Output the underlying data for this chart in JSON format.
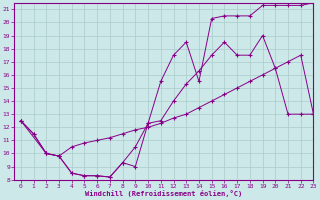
{
  "xlabel": "Windchill (Refroidissement éolien,°C)",
  "bg_color": "#cce8e8",
  "grid_color": "#aacccc",
  "line_color": "#880088",
  "xlim": [
    -0.5,
    23
  ],
  "ylim": [
    8,
    21.5
  ],
  "xticks": [
    0,
    1,
    2,
    3,
    4,
    5,
    6,
    7,
    8,
    9,
    10,
    11,
    12,
    13,
    14,
    15,
    16,
    17,
    18,
    19,
    20,
    21,
    22,
    23
  ],
  "yticks": [
    8,
    9,
    10,
    11,
    12,
    13,
    14,
    15,
    16,
    17,
    18,
    19,
    20,
    21
  ],
  "line1_x": [
    0,
    1,
    2,
    3,
    4,
    5,
    6,
    7,
    8,
    9,
    10,
    11,
    12,
    13,
    14,
    15,
    16,
    17,
    18,
    19,
    20,
    21,
    22,
    23
  ],
  "line1_y": [
    12.5,
    11.5,
    10.0,
    9.8,
    8.5,
    8.3,
    8.3,
    8.2,
    9.3,
    10.5,
    12.3,
    12.5,
    14.0,
    15.3,
    16.3,
    17.5,
    18.5,
    17.5,
    17.5,
    19.0,
    16.5,
    13.0,
    13.0,
    13.0
  ],
  "line2_x": [
    0,
    2,
    3,
    4,
    5,
    6,
    7,
    8,
    9,
    10,
    11,
    12,
    13,
    14,
    15,
    16,
    17,
    18,
    19,
    20,
    21,
    22,
    23
  ],
  "line2_y": [
    12.5,
    10.0,
    9.8,
    10.5,
    10.8,
    11.0,
    11.2,
    11.5,
    11.8,
    12.0,
    12.3,
    12.7,
    13.0,
    13.5,
    14.0,
    14.5,
    15.0,
    15.5,
    16.0,
    16.5,
    17.0,
    17.5,
    13.0
  ],
  "line3_x": [
    0,
    1,
    2,
    3,
    4,
    5,
    6,
    7,
    8,
    9,
    10,
    11,
    12,
    13,
    14,
    15,
    16,
    17,
    18,
    19,
    20,
    21,
    22,
    23
  ],
  "line3_y": [
    12.5,
    11.5,
    10.0,
    9.8,
    8.5,
    8.3,
    8.3,
    8.2,
    9.3,
    9.0,
    12.3,
    15.5,
    17.5,
    18.5,
    15.5,
    20.3,
    20.5,
    20.5,
    20.5,
    21.3,
    21.3,
    21.3,
    21.3,
    21.5
  ]
}
